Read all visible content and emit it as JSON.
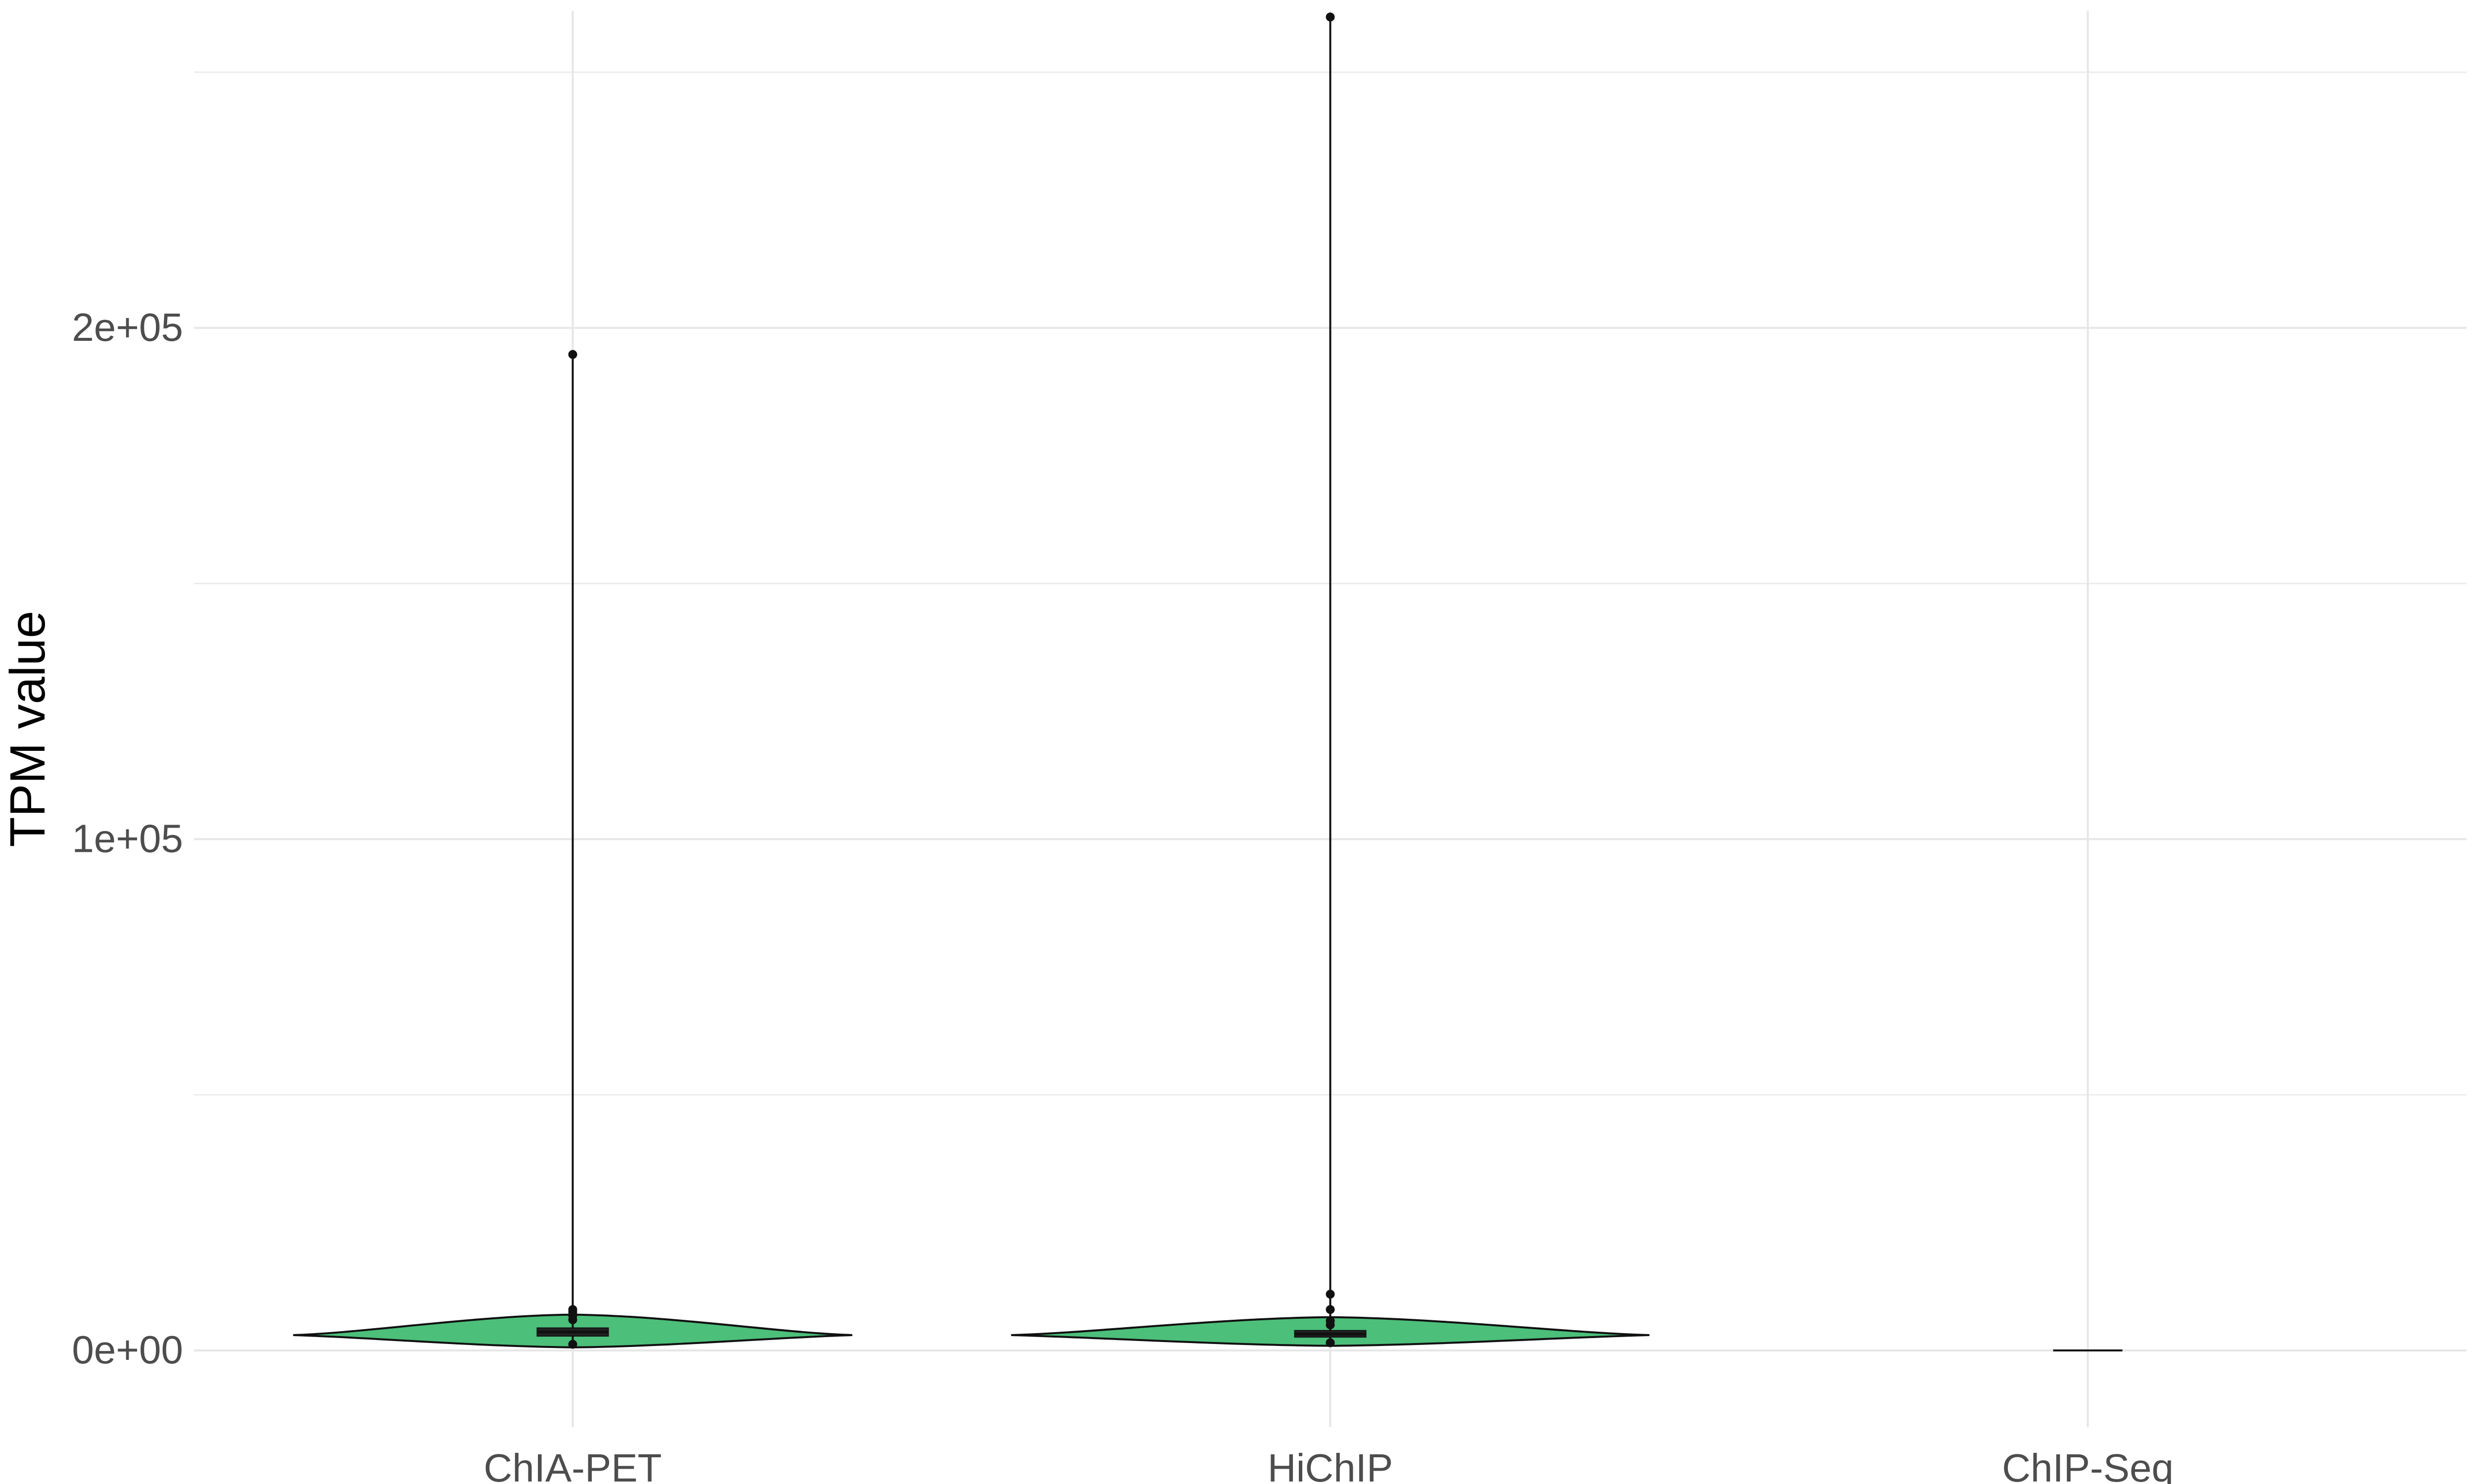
{
  "chart_data": {
    "type": "violin",
    "title": "",
    "xlabel": "",
    "ylabel": "TPM value",
    "ylim": [
      -15000,
      262000
    ],
    "y_ticks": [
      0,
      100000,
      200000
    ],
    "y_tick_labels": [
      "0e+00",
      "1e+05",
      "2e+05"
    ],
    "y_minor_ticks": [
      50000,
      150000,
      250000
    ],
    "grid": true,
    "legend": "none",
    "fill_color": "#4cbf7a",
    "outline_color": "#111111",
    "categories": [
      "ChIA-PET",
      "HiChIP",
      "ChIP-Seq"
    ],
    "series": [
      {
        "category": "ChIA-PET",
        "min": 1200,
        "q1": 2800,
        "median": 3600,
        "q3": 4400,
        "max": 194800,
        "outliers": [
          6000,
          6800,
          7500,
          8000,
          194800
        ],
        "density_peak": 3000
      },
      {
        "category": "HiChIP",
        "min": 1500,
        "q1": 2600,
        "median": 3200,
        "q3": 3900,
        "max": 260800,
        "outliers": [
          5000,
          5800,
          8000,
          11000,
          260800
        ],
        "density_peak": 3000
      },
      {
        "category": "ChIP-Seq",
        "min": 0,
        "q1": 0,
        "median": 0,
        "q3": 0,
        "max": 0,
        "outliers": [],
        "density_peak": 0
      }
    ]
  }
}
